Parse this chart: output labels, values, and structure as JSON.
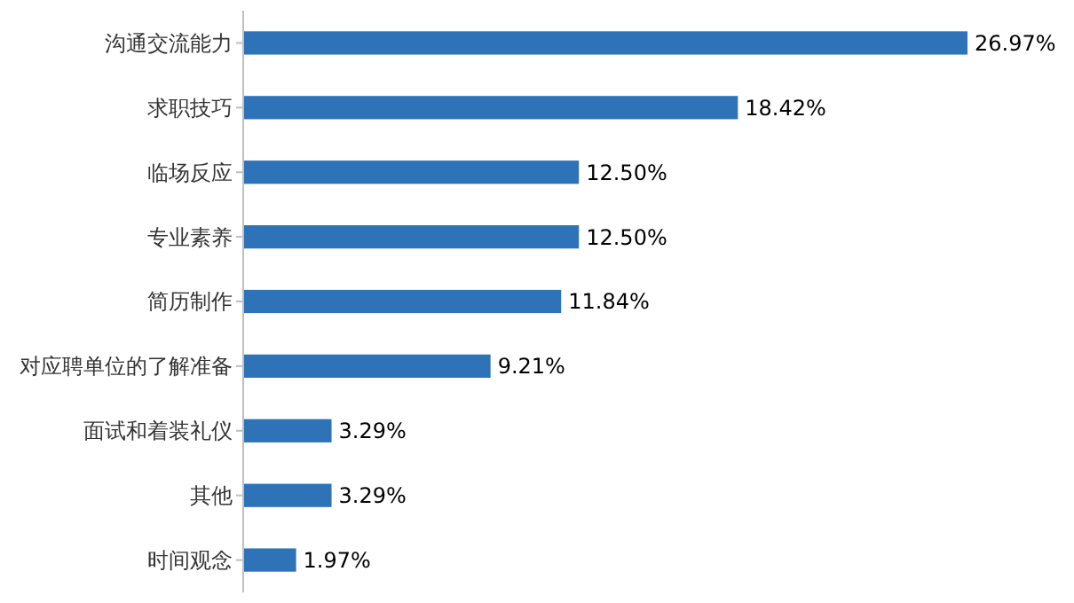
{
  "chart_data": {
    "type": "bar",
    "orientation": "horizontal",
    "categories": [
      "沟通交流能力",
      "求职技巧",
      "临场反应",
      "专业素养",
      "简历制作",
      "对应聘单位的了解准备",
      "面试和着装礼仪",
      "其他",
      "时间观念"
    ],
    "values": [
      26.97,
      18.42,
      12.5,
      12.5,
      11.84,
      9.21,
      3.29,
      3.29,
      1.97
    ],
    "value_labels": [
      "26.97%",
      "18.42%",
      "12.50%",
      "12.50%",
      "11.84%",
      "9.21%",
      "3.29%",
      "3.29%",
      "1.97%"
    ],
    "color": "#2e72b8"
  }
}
